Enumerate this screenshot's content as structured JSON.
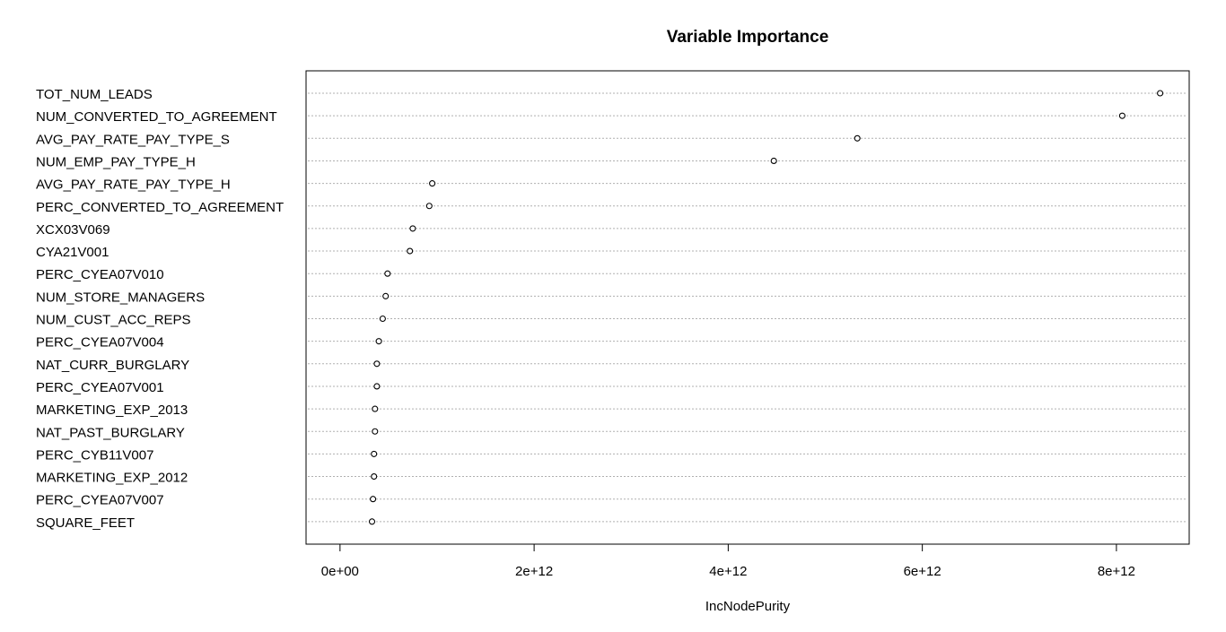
{
  "chart_data": {
    "type": "scatter",
    "subtype": "dotchart",
    "title": "Variable Importance",
    "xlabel": "IncNodePurity",
    "ylabel": "",
    "xlim": [
      -350000000000.0,
      8750000000000.0
    ],
    "xticks": [
      0,
      2000000000000.0,
      4000000000000.0,
      6000000000000.0,
      8000000000000.0
    ],
    "xtick_labels": [
      "0e+00",
      "2e+12",
      "4e+12",
      "6e+12",
      "8e+12"
    ],
    "grid": "dotted horizontal lines per variable",
    "legend": "none",
    "categories": [
      "TOT_NUM_LEADS",
      "NUM_CONVERTED_TO_AGREEMENT",
      "AVG_PAY_RATE_PAY_TYPE_S",
      "NUM_EMP_PAY_TYPE_H",
      "AVG_PAY_RATE_PAY_TYPE_H",
      "PERC_CONVERTED_TO_AGREEMENT",
      "XCX03V069",
      "CYA21V001",
      "PERC_CYEA07V010",
      "NUM_STORE_MANAGERS",
      "NUM_CUST_ACC_REPS",
      "PERC_CYEA07V004",
      "NAT_CURR_BURGLARY",
      "PERC_CYEA07V001",
      "MARKETING_EXP_2013",
      "NAT_PAST_BURGLARY",
      "PERC_CYB11V007",
      "MARKETING_EXP_2012",
      "PERC_CYEA07V007",
      "SQUARE_FEET"
    ],
    "values": [
      8450000000000.0,
      8060000000000.0,
      5330000000000.0,
      4470000000000.0,
      950000000000.0,
      920000000000.0,
      750000000000.0,
      720000000000.0,
      490000000000.0,
      470000000000.0,
      440000000000.0,
      400000000000.0,
      380000000000.0,
      380000000000.0,
      360000000000.0,
      360000000000.0,
      350000000000.0,
      350000000000.0,
      340000000000.0,
      330000000000.0
    ]
  }
}
